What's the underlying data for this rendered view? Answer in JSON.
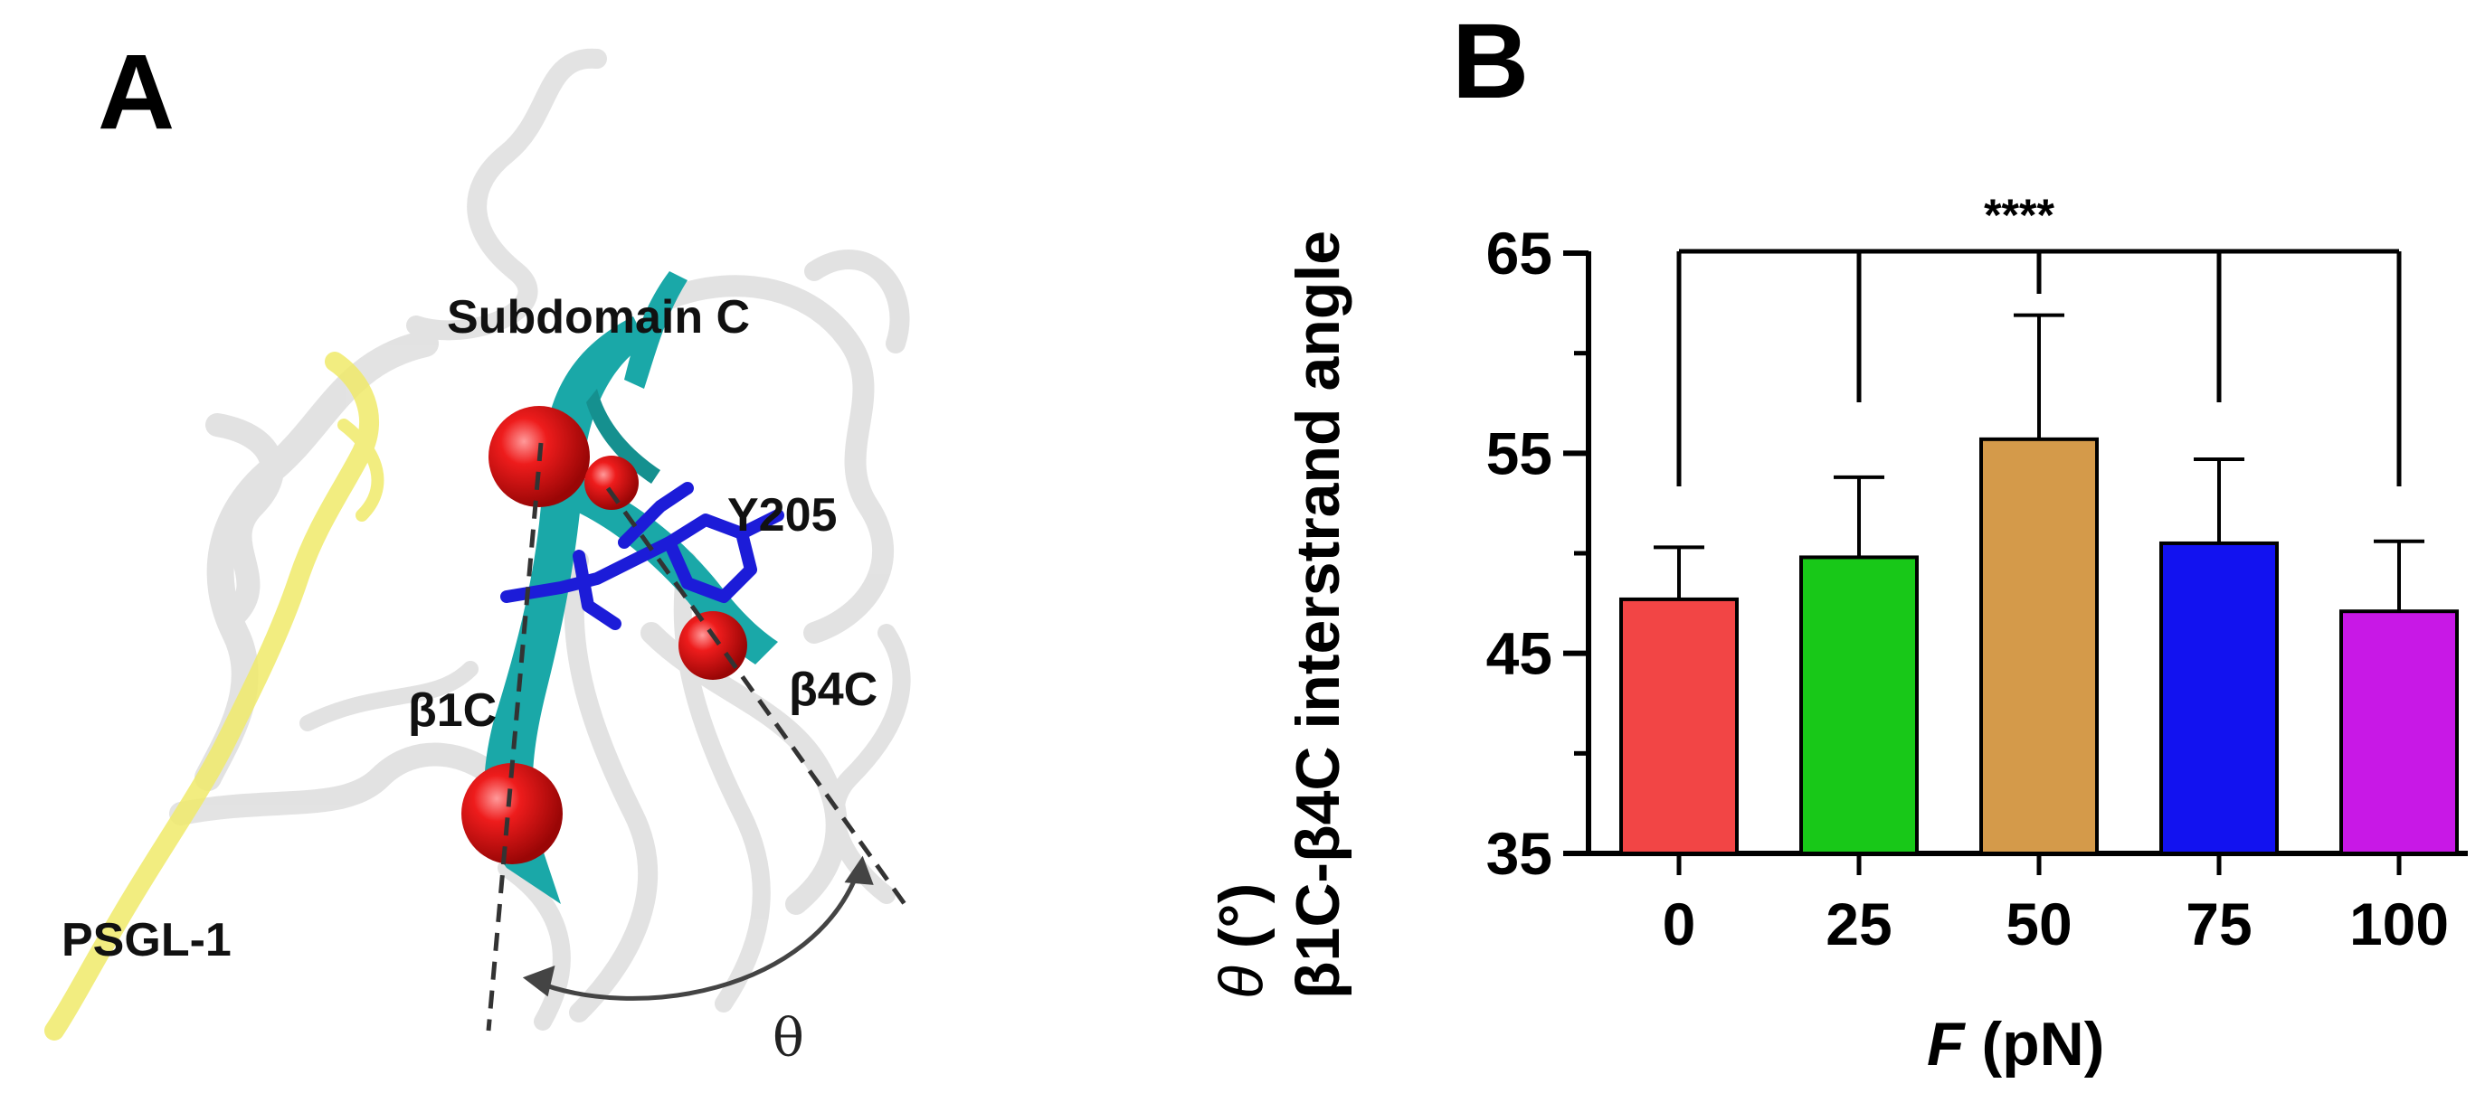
{
  "panel_a": {
    "letter": "A",
    "labels": {
      "subdomain": "Subdomain C",
      "residue": "Y205",
      "strand1": "β1C",
      "strand4": "β4C",
      "ligand": "PSGL-1",
      "angle": "θ"
    },
    "colors": {
      "ribbon": "#d8d8d8",
      "ligand": "#f0ea6a",
      "strand": "#1aa8a8",
      "atom": "#e01414",
      "residue": "#1c1cd8"
    }
  },
  "panel_b": {
    "letter": "B",
    "significance": "****",
    "ylabel_line1": "β1C-β4C interstrand angle",
    "ylabel_theta": "θ",
    "ylabel_unit": " (°)",
    "xlabel_var": "F",
    "xlabel_unit": " (pN)"
  },
  "chart_data": {
    "type": "bar",
    "categories": [
      "0",
      "25",
      "50",
      "75",
      "100"
    ],
    "values": [
      47.7,
      49.8,
      55.7,
      50.5,
      47.1
    ],
    "errors": [
      2.6,
      4.0,
      6.2,
      4.2,
      3.5
    ],
    "colors": [
      "#f24545",
      "#18c818",
      "#d49a4a",
      "#1212f0",
      "#c818e6"
    ],
    "ylim": [
      35,
      65
    ],
    "yticks": [
      "35",
      "45",
      "55",
      "65"
    ],
    "xlabel": "F (pN)",
    "ylabel": "β1C-β4C interstrand angle θ (°)",
    "annotation": "****"
  }
}
